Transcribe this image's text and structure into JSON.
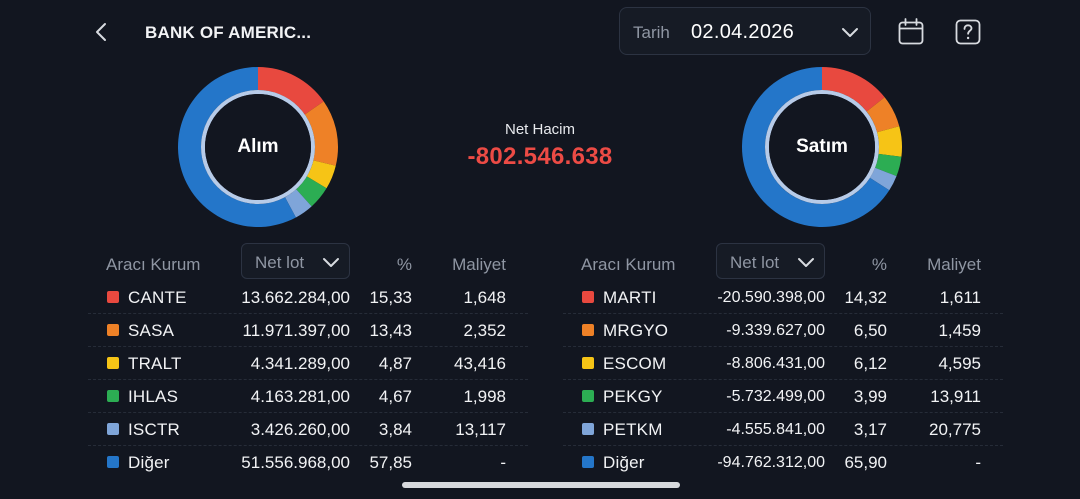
{
  "header": {
    "title": "BANK OF AMERIC...",
    "date_label": "Tarih",
    "date_value": "02.04.2026",
    "icons": {
      "back": "chevron-left-icon",
      "date_dropdown": "chevron-down-icon",
      "calendar": "calendar-icon",
      "help": "help-icon"
    }
  },
  "summary": {
    "net_label": "Net Hacim",
    "net_value": "-802.546.638",
    "net_color": "#ec4b45"
  },
  "colors": {
    "red": "#e8493f",
    "orange": "#ee8127",
    "yellow": "#f6c416",
    "green": "#2cad53",
    "lightblue": "#7fa5d9",
    "blue": "#2476c9"
  },
  "buy": {
    "label": "Alım",
    "headers": {
      "broker": "Aracı Kurum",
      "select": "Net lot",
      "pct": "%",
      "cost": "Maliyet"
    },
    "rows": [
      {
        "name": "CANTE",
        "lot": "13.662.284,00",
        "pct": "15,33",
        "cost": "1,648",
        "color": "red"
      },
      {
        "name": "SASA",
        "lot": "11.971.397,00",
        "pct": "13,43",
        "cost": "2,352",
        "color": "orange"
      },
      {
        "name": "TRALT",
        "lot": "4.341.289,00",
        "pct": "4,87",
        "cost": "43,416",
        "color": "yellow"
      },
      {
        "name": "IHLAS",
        "lot": "4.163.281,00",
        "pct": "4,67",
        "cost": "1,998",
        "color": "green"
      },
      {
        "name": "ISCTR",
        "lot": "3.426.260,00",
        "pct": "3,84",
        "cost": "13,117",
        "color": "lightblue"
      },
      {
        "name": "Diğer",
        "lot": "51.556.968,00",
        "pct": "57,85",
        "cost": "-",
        "color": "blue"
      }
    ],
    "shares": [
      15.33,
      13.43,
      4.87,
      4.67,
      3.84,
      57.85
    ]
  },
  "sell": {
    "label": "Satım",
    "headers": {
      "broker": "Aracı Kurum",
      "select": "Net lot",
      "pct": "%",
      "cost": "Maliyet"
    },
    "rows": [
      {
        "name": "MARTI",
        "lot": "-20.590.398,00",
        "pct": "14,32",
        "cost": "1,611",
        "color": "red"
      },
      {
        "name": "MRGYO",
        "lot": "-9.339.627,00",
        "pct": "6,50",
        "cost": "1,459",
        "color": "orange"
      },
      {
        "name": "ESCOM",
        "lot": "-8.806.431,00",
        "pct": "6,12",
        "cost": "4,595",
        "color": "yellow"
      },
      {
        "name": "PEKGY",
        "lot": "-5.732.499,00",
        "pct": "3,99",
        "cost": "13,911",
        "color": "green"
      },
      {
        "name": "PETKM",
        "lot": "-4.555.841,00",
        "pct": "3,17",
        "cost": "20,775",
        "color": "lightblue"
      },
      {
        "name": "Diğer",
        "lot": "-94.762.312,00",
        "pct": "65,90",
        "cost": "-",
        "color": "blue"
      }
    ],
    "shares": [
      14.32,
      6.5,
      6.12,
      3.99,
      3.17,
      65.9
    ]
  }
}
